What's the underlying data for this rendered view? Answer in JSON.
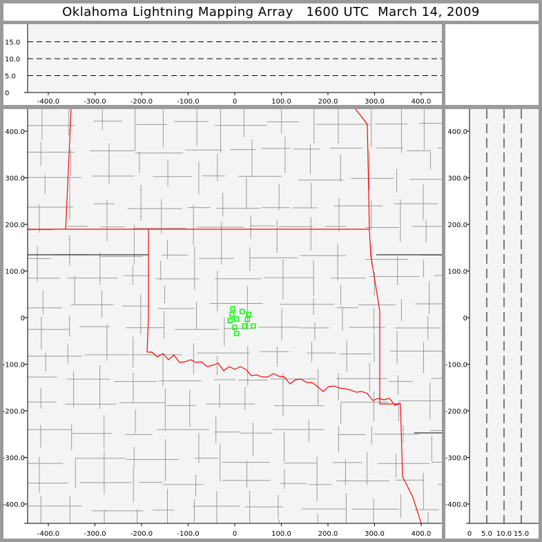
{
  "title": "Oklahoma Lightning Mapping Array   1600 UTC  March 14, 2009",
  "colors": {
    "background": "#f4f4f4",
    "frame": "#9a9a9a",
    "county_lines": "#999999",
    "state_lines": "#ff0000",
    "stations": "#00ff00"
  },
  "chart_data": [
    {
      "name": "altitude-vs-east-west",
      "type": "scatter",
      "xlim": [
        -445,
        445
      ],
      "ylim": [
        0,
        20
      ],
      "xticks": [
        "-400.0",
        "-300.0",
        "-200.0",
        "-100.0",
        "0",
        "100.0",
        "200.0",
        "300.0",
        "400.0"
      ],
      "yticks": [
        "0",
        "5.0",
        "10.0",
        "15.0"
      ],
      "dashed_lines_at": [
        5,
        10,
        15
      ],
      "points": []
    },
    {
      "name": "plan-view-map",
      "type": "scatter",
      "xlim": [
        -445,
        445
      ],
      "ylim": [
        -441,
        447
      ],
      "xticks": [
        "-400.0",
        "-300.0",
        "-200.0",
        "-100.0",
        "0",
        "100.0",
        "200.0",
        "300.0",
        "400.0"
      ],
      "yticks": [
        "-400.0",
        "-300.0",
        "-200.0",
        "-100.0",
        "0",
        "100.0",
        "200.0",
        "300.0",
        "400.0"
      ],
      "stations": [
        [
          -4,
          19
        ],
        [
          16,
          13
        ],
        [
          30,
          7
        ],
        [
          -6,
          7
        ],
        [
          -10,
          -6
        ],
        [
          4,
          -3
        ],
        [
          27,
          -4
        ],
        [
          40,
          -18
        ],
        [
          21,
          -18
        ],
        [
          0,
          -21
        ],
        [
          4,
          -34
        ]
      ]
    },
    {
      "name": "north-south-vs-altitude",
      "type": "scatter",
      "xlim": [
        0,
        20
      ],
      "ylim": [
        -441,
        447
      ],
      "xticks": [
        "0",
        "5.0",
        "10.0",
        "15.0"
      ],
      "yticks": [
        "-400.0",
        "-300.0",
        "-200.0",
        "-100.0",
        "0",
        "100.0",
        "200.0",
        "300.0",
        "400.0"
      ],
      "dashed_lines_at": [
        5,
        10,
        15
      ],
      "points": []
    }
  ]
}
